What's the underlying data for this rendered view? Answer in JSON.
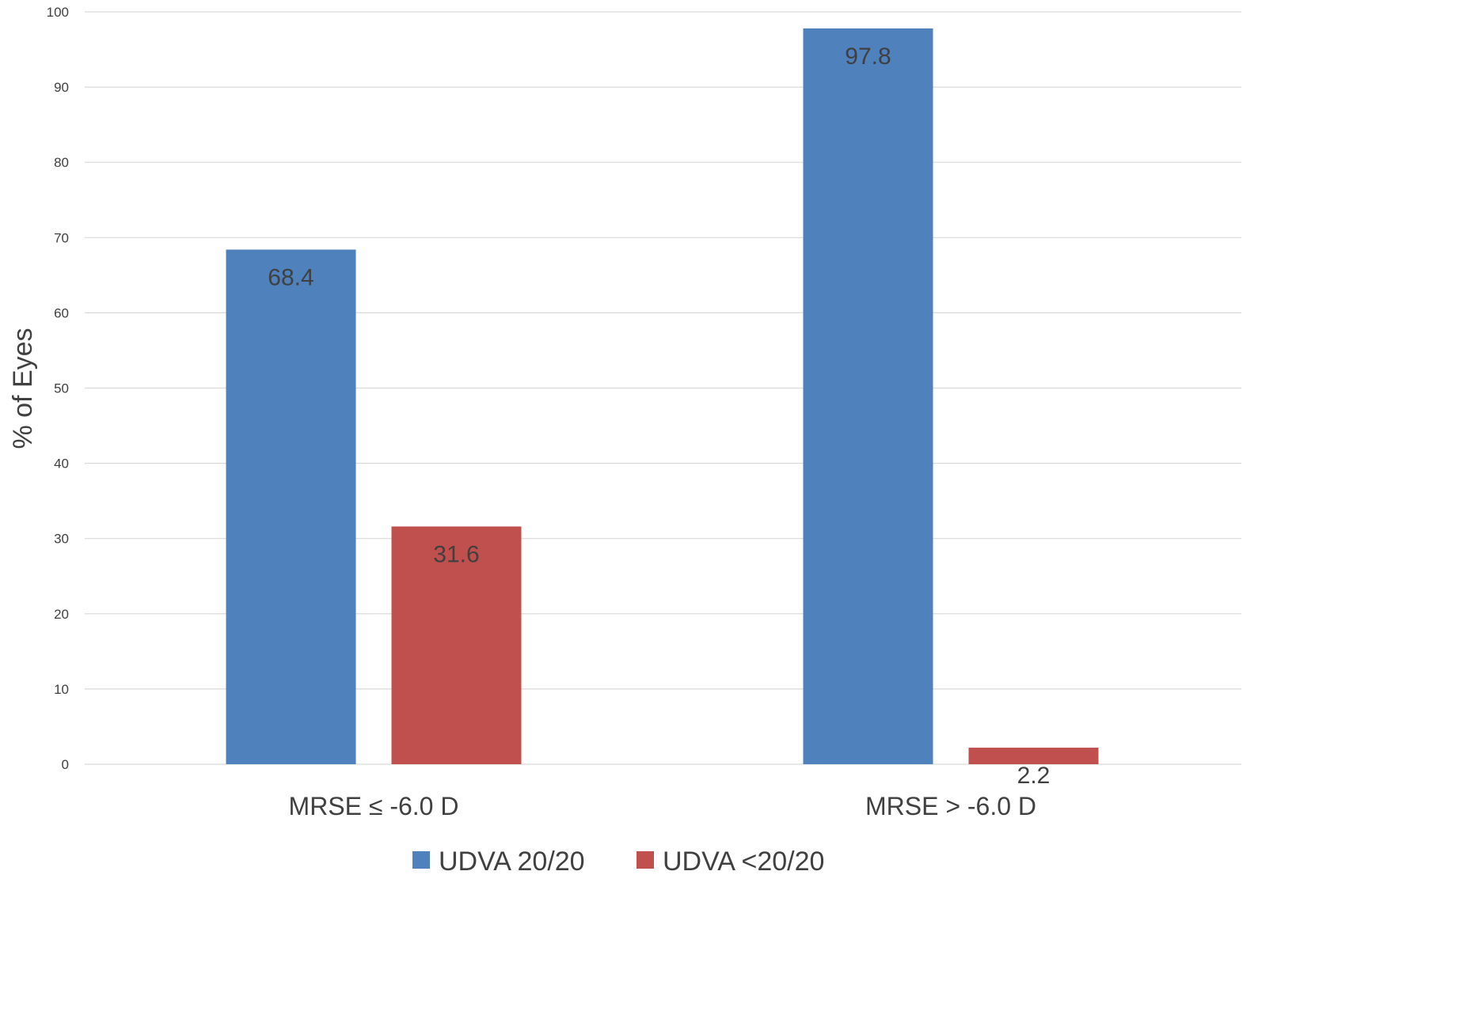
{
  "chart_data": {
    "type": "bar",
    "title": "",
    "xlabel": "",
    "ylabel": "% of Eyes",
    "ylim": [
      0,
      100
    ],
    "yticks": [
      0,
      10,
      20,
      30,
      40,
      50,
      60,
      70,
      80,
      90,
      100
    ],
    "grid": true,
    "legend_position": "bottom",
    "categories": [
      "MRSE ≤ -6.0 D",
      "MRSE > -6.0 D"
    ],
    "series": [
      {
        "name": "UDVA 20/20",
        "values": [
          68.4,
          97.8
        ],
        "color": "#4F81BD"
      },
      {
        "name": "UDVA <20/20",
        "values": [
          31.6,
          2.2
        ],
        "color": "#C0504D"
      }
    ],
    "data_labels": [
      [
        "68.4",
        "97.8"
      ],
      [
        "31.6",
        "2.2"
      ]
    ]
  }
}
